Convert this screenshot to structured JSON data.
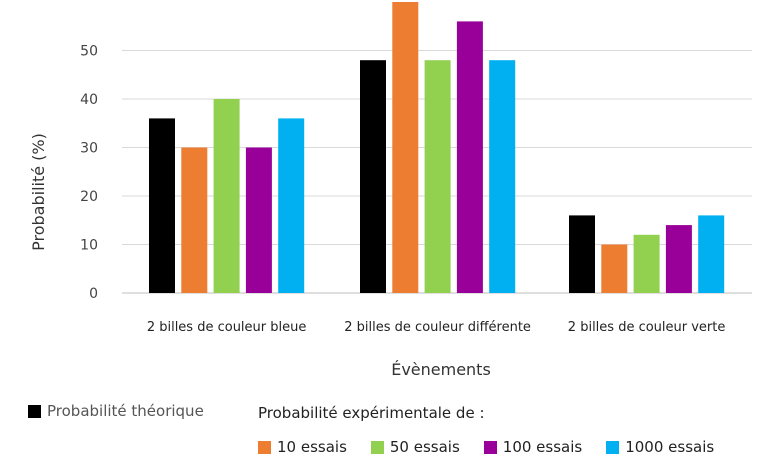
{
  "chart_data": {
    "type": "bar",
    "title": "",
    "xlabel": "Évènements",
    "ylabel": "Probabilité (%)",
    "ylim": [
      0,
      60
    ],
    "yticks": [
      0,
      10,
      20,
      30,
      40,
      50
    ],
    "grid": true,
    "categories": [
      "2 billes de couleur bleue",
      "2 billes de couleur différente",
      "2 billes de couleur verte"
    ],
    "series": [
      {
        "name": "Probabilité théorique",
        "color": "#000000",
        "values": [
          36,
          48,
          16
        ]
      },
      {
        "name": "10 essais",
        "color": "#ED7D31",
        "values": [
          30,
          60,
          10
        ]
      },
      {
        "name": "50 essais",
        "color": "#92D050",
        "values": [
          40,
          48,
          12
        ]
      },
      {
        "name": "100 essais",
        "color": "#990099",
        "values": [
          30,
          56,
          14
        ]
      },
      {
        "name": "1000 essais",
        "color": "#00B0F0",
        "values": [
          36,
          48,
          16
        ]
      }
    ],
    "legend": {
      "placement": "bottom",
      "experimental_title": "Probabilité expérimentale de :"
    }
  }
}
